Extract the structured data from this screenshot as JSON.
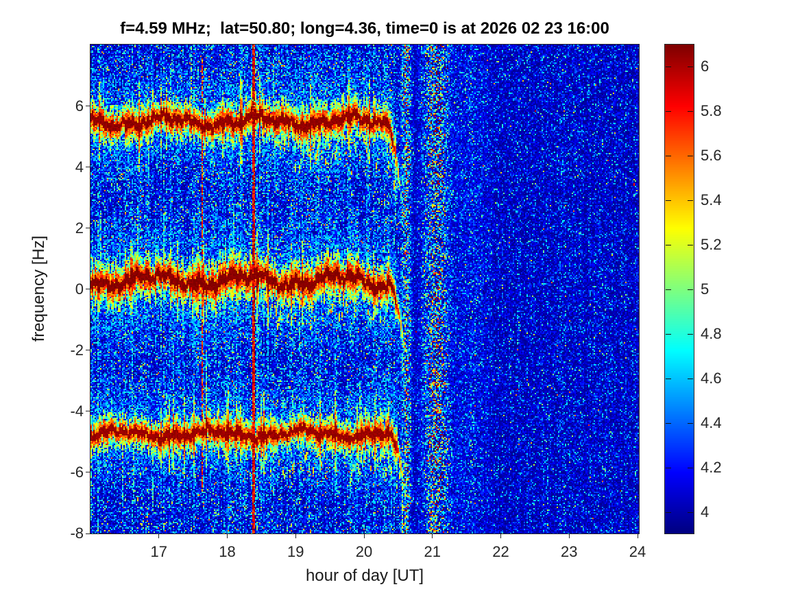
{
  "chart_data": {
    "type": "heatmap",
    "subtype": "doppler-spectrogram",
    "title": "f=4.59 MHz;  lat=50.80; long=4.36, time=0 is at 2026 02 23 16:00",
    "xlabel": "hour of day [UT]",
    "ylabel": "frequency [Hz]",
    "xlim": [
      16,
      24.02
    ],
    "ylim": [
      -8,
      8.02
    ],
    "xticks": [
      17,
      18,
      19,
      20,
      21,
      22,
      23,
      24
    ],
    "yticks": [
      6,
      4,
      2,
      0,
      -2,
      -4,
      -6,
      -8
    ],
    "grid": false,
    "colormap": "jet",
    "colorbar": {
      "position": "right",
      "vmin": 3.905,
      "vmax": 6.1,
      "ticks": [
        6,
        5.8,
        5.6,
        5.4,
        5.2,
        5,
        4.8,
        4.6,
        4.4,
        4.2,
        4
      ]
    },
    "background_level": 3.93,
    "noise": {
      "active_scale": 0.3,
      "quiet_scale": 0.19,
      "active_until_h": 20.7,
      "speck_prob": 0.00035
    },
    "bands": [
      {
        "name": "upper-sideband",
        "center_hz": 5.5,
        "t_start": 16.0,
        "t_end": 20.56,
        "wiggle_hz": 0.27,
        "width_hz": 0.5,
        "peak": 6.1,
        "dive_start_h": 20.3,
        "dive_drop_hz": 2.6,
        "fade_start_h": 20.42
      },
      {
        "name": "carrier",
        "center_hz": 0.3,
        "t_start": 16.0,
        "t_end": 20.6,
        "wiggle_hz": 0.33,
        "width_hz": 0.55,
        "peak": 6.12,
        "dive_start_h": 20.32,
        "dive_drop_hz": 2.4,
        "fade_start_h": 20.46
      },
      {
        "name": "lower-sideband",
        "center_hz": -4.72,
        "t_start": 16.0,
        "t_end": 20.62,
        "wiggle_hz": 0.22,
        "width_hz": 0.45,
        "peak": 6.08,
        "dive_start_h": 20.3,
        "dive_drop_hz": 2.3,
        "fade_start_h": 20.46
      }
    ],
    "vertical_streaks": [
      {
        "t": 16.11,
        "width_h": 0.022,
        "density": 0.45,
        "value": 5.0,
        "f_min": -8,
        "f_max": 8.02
      },
      {
        "t": 17.63,
        "width_h": 0.026,
        "density": 0.8,
        "value": 6.0,
        "f_min": -6.6,
        "f_max": 7.6
      },
      {
        "t": 18.385,
        "width_h": 0.032,
        "density": 0.95,
        "value": 6.15,
        "f_min": -8,
        "f_max": 8.02
      },
      {
        "t": 18.42,
        "width_h": 0.07,
        "density": 0.3,
        "value": 5.1,
        "f_min": -8,
        "f_max": 8.02
      }
    ],
    "minor_streaks": {
      "times": [
        16.35,
        16.62,
        17.08,
        17.3,
        17.52,
        18.03,
        18.2,
        18.6,
        18.88,
        19.06,
        19.3,
        19.57,
        19.8,
        20.06,
        20.3,
        20.45,
        20.56
      ],
      "density": 0.28,
      "value": 4.85,
      "width_h": 0.02
    },
    "diffuse_bands": [
      {
        "t_center": 20.62,
        "sigma_h": 0.06,
        "strength": 0.5
      },
      {
        "t_center": 21.05,
        "sigma_h": 0.17,
        "strength": 0.55
      },
      {
        "t_center": 21.55,
        "sigma_h": 0.3,
        "strength": 0.12
      }
    ],
    "specks": [
      {
        "t": 23.92,
        "f": 6.9,
        "value": 5.0
      },
      {
        "t": 23.93,
        "f": 3.5,
        "value": 5.8
      },
      {
        "t": 23.93,
        "f": 3.1,
        "value": 4.9
      },
      {
        "t": 22.4,
        "f": -3.1,
        "value": 5.1
      }
    ],
    "render_seed": 20260223
  }
}
